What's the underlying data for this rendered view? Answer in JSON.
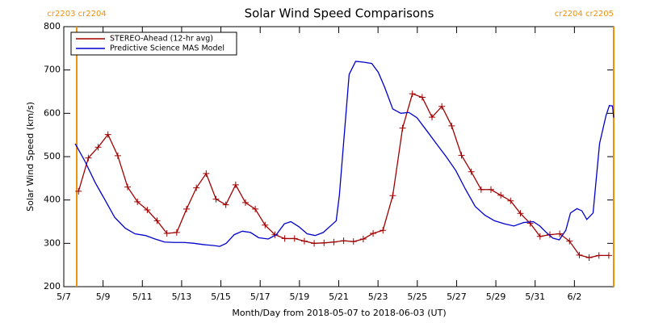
{
  "chart_data": {
    "type": "line",
    "title": "Solar Wind Speed Comparisons",
    "x_label": "Month/Day from 2018-05-07 to 2018-06-03 (UT)",
    "y_label": "Solar Wind Speed (km/s)",
    "xlim": [
      0,
      28
    ],
    "ylim": [
      200,
      800
    ],
    "yticks": [
      200,
      300,
      400,
      500,
      600,
      700,
      800
    ],
    "xticks": [
      {
        "value": 0,
        "label": "5/7"
      },
      {
        "value": 2,
        "label": "5/9"
      },
      {
        "value": 4,
        "label": "5/11"
      },
      {
        "value": 6,
        "label": "5/13"
      },
      {
        "value": 8,
        "label": "5/15"
      },
      {
        "value": 10,
        "label": "5/17"
      },
      {
        "value": 12,
        "label": "5/19"
      },
      {
        "value": 14,
        "label": "5/21"
      },
      {
        "value": 16,
        "label": "5/23"
      },
      {
        "value": 18,
        "label": "5/25"
      },
      {
        "value": 20,
        "label": "5/27"
      },
      {
        "value": 22,
        "label": "5/29"
      },
      {
        "value": 24,
        "label": "5/31"
      },
      {
        "value": 26,
        "label": "6/2"
      }
    ],
    "legend": "upper left",
    "annotations": [
      {
        "text": "cr2203 cr2204",
        "x": 0.66,
        "color": "#f0900a"
      },
      {
        "text": "cr2204 cr2205",
        "x": 28,
        "color": "#f0900a"
      }
    ],
    "series": [
      {
        "name": "STEREO-Ahead (12-hr avg)",
        "color": "#a00000",
        "marker": "+",
        "x": [
          0.75,
          1.25,
          1.75,
          2.25,
          2.75,
          3.25,
          3.75,
          4.25,
          4.75,
          5.25,
          5.75,
          6.25,
          6.75,
          7.25,
          7.75,
          8.25,
          8.75,
          9.25,
          9.75,
          10.25,
          10.75,
          11.25,
          11.75,
          12.25,
          12.75,
          13.25,
          13.75,
          14.25,
          14.75,
          15.25,
          15.75,
          16.25,
          16.75,
          17.25,
          17.75,
          18.25,
          18.75,
          19.25,
          19.75,
          20.25,
          20.75,
          21.25,
          21.75,
          22.25,
          22.75,
          23.25,
          23.75,
          24.25,
          24.75,
          25.25,
          25.75,
          26.25,
          26.75,
          27.25,
          27.75
        ],
        "values": [
          420,
          497,
          522,
          551,
          502,
          430,
          396,
          377,
          352,
          323,
          325,
          379,
          428,
          461,
          402,
          389,
          435,
          394,
          379,
          342,
          320,
          311,
          311,
          305,
          300,
          301,
          303,
          306,
          304,
          310,
          323,
          330,
          410,
          566,
          645,
          637,
          591,
          616,
          571,
          503,
          465,
          424,
          424,
          411,
          398,
          369,
          346,
          316,
          320,
          322,
          305,
          273,
          267,
          272,
          272
        ]
      },
      {
        "name": "Predictive Science MAS Model",
        "color": "#0000cc",
        "x": [
          0.58,
          1.07,
          1.6,
          2.1,
          2.59,
          3.13,
          3.62,
          4.16,
          4.65,
          5.14,
          5.64,
          6.13,
          6.63,
          7.12,
          7.61,
          7.94,
          8.27,
          8.68,
          9.09,
          9.51,
          9.92,
          10.41,
          10.82,
          11.23,
          11.56,
          11.98,
          12.39,
          12.8,
          13.21,
          13.7,
          13.87,
          14.03,
          14.53,
          14.86,
          15.27,
          15.68,
          16.01,
          16.34,
          16.75,
          17.16,
          17.57,
          17.98,
          18.48,
          18.97,
          19.47,
          19.96,
          20.45,
          20.95,
          21.44,
          21.93,
          22.43,
          22.92,
          23.42,
          23.91,
          24.24,
          24.57,
          24.9,
          25.23,
          25.56,
          25.8,
          26.13,
          26.38,
          26.63,
          26.95,
          27.28,
          27.61,
          27.78,
          27.94,
          28
        ],
        "values": [
          530,
          490,
          440,
          400,
          360,
          335,
          322,
          318,
          310,
          303,
          302,
          302,
          300,
          297,
          295,
          293,
          300,
          320,
          328,
          325,
          313,
          310,
          320,
          345,
          350,
          338,
          322,
          318,
          325,
          345,
          352,
          410,
          690,
          720,
          718,
          715,
          695,
          660,
          610,
          600,
          602,
          590,
          560,
          530,
          500,
          468,
          425,
          385,
          365,
          352,
          345,
          340,
          348,
          350,
          340,
          325,
          312,
          308,
          330,
          370,
          380,
          375,
          355,
          370,
          530,
          595,
          618,
          617,
          590
        ]
      }
    ]
  }
}
